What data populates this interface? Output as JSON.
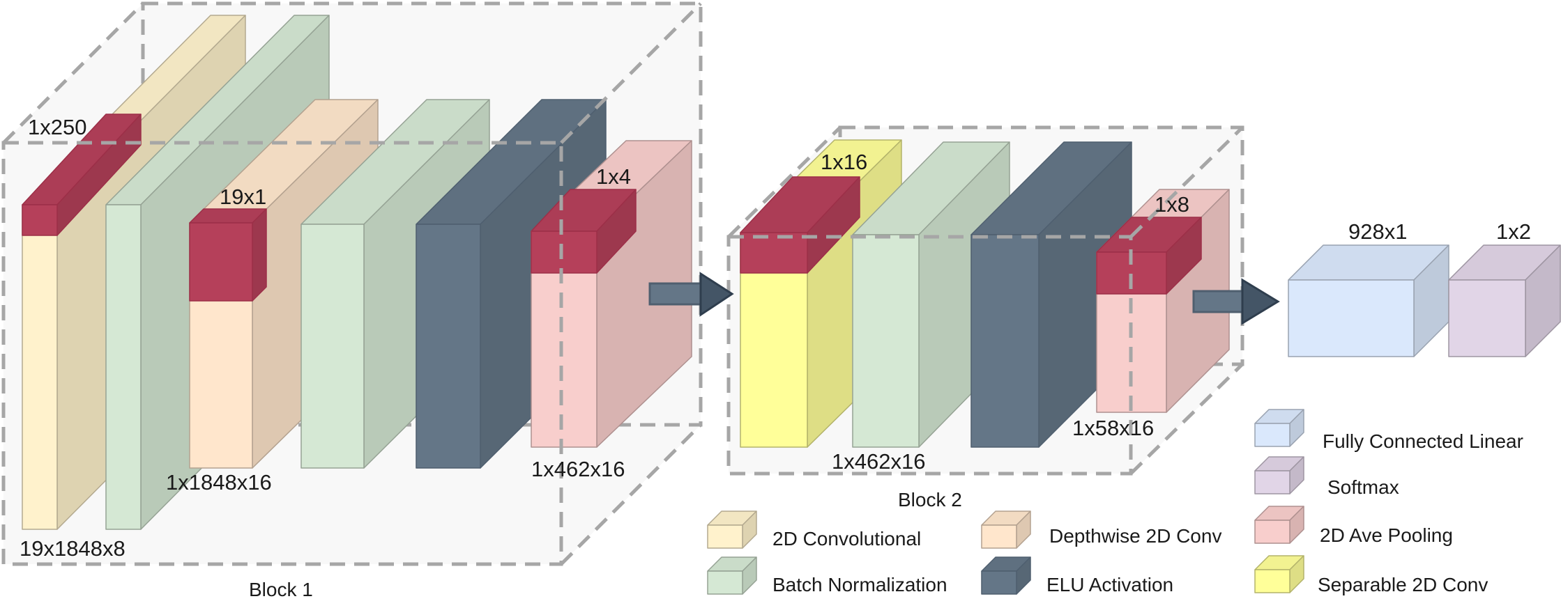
{
  "colors": {
    "conv2d": "#fff2cc",
    "batch_norm": "#d5e8d4",
    "depthwise_conv": "#ffe6cc",
    "elu": "#647687",
    "avg_pool": "#f8cecc",
    "separable_conv": "#ffff99",
    "linear": "#dae8fc",
    "softmax": "#e1d5e7",
    "kernel": "#b5405a",
    "dashed_box": "#a6a6a6",
    "arrow": "#647687"
  },
  "blocks": {
    "block1": "Block 1",
    "block2": "Block 2"
  },
  "dimensions": {
    "input_kernel": "1x250",
    "input_shape": "19x1848x8",
    "depthwise_kernel": "19x1",
    "depthwise_shape": "1x1848x16",
    "pool1_kernel": "1x4",
    "pool1_shape": "1x462x16",
    "separable_kernel": "1x16",
    "block2_shape": "1x462x16",
    "pool2_kernel": "1x8",
    "pool2_shape": "1x58x16",
    "linear_shape": "928x1",
    "softmax_shape": "1x2"
  },
  "legend": [
    {
      "label": "2D Convolutional",
      "color_key": "conv2d",
      "icon": "conv2d-cube-icon"
    },
    {
      "label": "Depthwise 2D Conv",
      "color_key": "depthwise_conv",
      "icon": "depthwise-conv-cube-icon"
    },
    {
      "label": "Fully Connected Linear",
      "color_key": "linear",
      "icon": "linear-cube-icon"
    },
    {
      "label": "Softmax",
      "color_key": "softmax",
      "icon": "softmax-cube-icon"
    },
    {
      "label": "2D Ave Pooling",
      "color_key": "avg_pool",
      "icon": "avg-pool-cube-icon"
    },
    {
      "label": "Batch Normalization",
      "color_key": "batch_norm",
      "icon": "batch-norm-cube-icon"
    },
    {
      "label": "ELU Activation",
      "color_key": "elu",
      "icon": "elu-cube-icon"
    },
    {
      "label": "Separable 2D Conv",
      "color_key": "separable_conv",
      "icon": "separable-conv-cube-icon"
    }
  ]
}
